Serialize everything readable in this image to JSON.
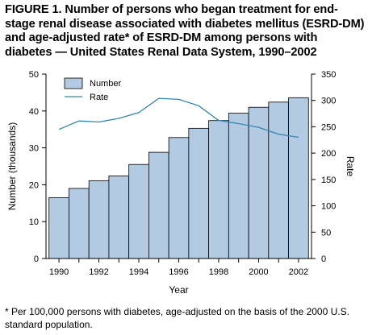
{
  "figure": {
    "title": "FIGURE 1. Number of persons who began treatment for end-stage renal disease associated with diabetes mellitus (ESRD-DM) and age-adjusted rate* of ESRD-DM among persons with diabetes — United States Renal Data System, 1990–2002",
    "footnote": "* Per 100,000 persons with diabetes, age-adjusted on the basis of the 2000 U.S. standard population."
  },
  "chart_data": {
    "type": "bar",
    "x": [
      1990,
      1991,
      1992,
      1993,
      1994,
      1995,
      1996,
      1997,
      1998,
      1999,
      2000,
      2001,
      2002
    ],
    "xticks": [
      "1990",
      "1992",
      "1994",
      "1996",
      "1998",
      "2000",
      "2002"
    ],
    "xlabel": "Year",
    "ylabel": "Number (thousands)",
    "y2label": "Rate",
    "ylim": [
      0,
      50
    ],
    "yticks": [
      0,
      10,
      20,
      30,
      40,
      50
    ],
    "y2lim": [
      0,
      350
    ],
    "y2ticks": [
      0,
      50,
      100,
      150,
      200,
      250,
      300,
      350
    ],
    "legend_position": "top-left",
    "series": [
      {
        "name": "Number",
        "type": "bar",
        "axis": "left",
        "color": "#b3cbe2",
        "values": [
          16.5,
          19.0,
          21.1,
          22.4,
          25.5,
          28.8,
          32.8,
          35.3,
          37.4,
          39.4,
          41.0,
          42.4,
          43.6
        ]
      },
      {
        "name": "Rate",
        "type": "line",
        "axis": "right",
        "color": "#2f86b5",
        "values": [
          245,
          261,
          259,
          266,
          277,
          304,
          302,
          290,
          262,
          256,
          249,
          236,
          230
        ]
      }
    ]
  }
}
